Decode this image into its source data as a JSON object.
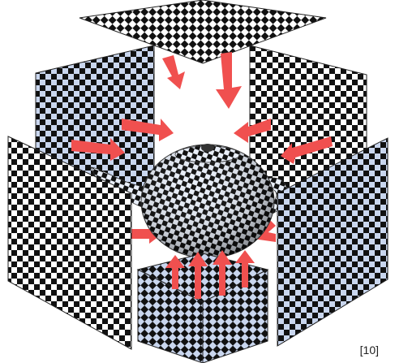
{
  "figure": {
    "citation": "[10]",
    "planes": [
      {
        "id": "top",
        "label": ""
      },
      {
        "id": "back-left",
        "label": ""
      },
      {
        "id": "back-right",
        "label": ""
      },
      {
        "id": "front-left",
        "label": ""
      },
      {
        "id": "front-right",
        "label": ""
      },
      {
        "id": "bottom",
        "label": ""
      }
    ],
    "object": "teapot-icon",
    "colors": {
      "checker_dark": "#111111",
      "checker_light": "#ffffff",
      "checker_blue": "#c9d6ee",
      "arrow": "#f0504f",
      "arrow_shadow": "#f7a3a0"
    }
  }
}
